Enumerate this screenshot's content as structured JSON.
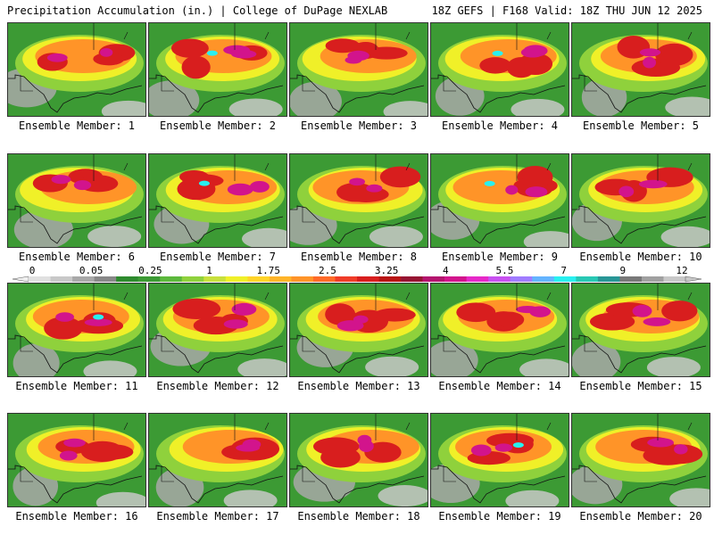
{
  "header": {
    "left": "Precipitation Accumulation (in.) | College of DuPage NEXLAB",
    "right": "18Z GEFS | F168 Valid: 18Z THU JUN 12 2025"
  },
  "panels": [
    {
      "label": "Ensemble Member: 1"
    },
    {
      "label": "Ensemble Member: 2"
    },
    {
      "label": "Ensemble Member: 3"
    },
    {
      "label": "Ensemble Member: 4"
    },
    {
      "label": "Ensemble Member: 5"
    },
    {
      "label": "Ensemble Member: 6"
    },
    {
      "label": "Ensemble Member: 7"
    },
    {
      "label": "Ensemble Member: 8"
    },
    {
      "label": "Ensemble Member: 9"
    },
    {
      "label": "Ensemble Member: 10"
    },
    {
      "label": "Ensemble Member: 11"
    },
    {
      "label": "Ensemble Member: 12"
    },
    {
      "label": "Ensemble Member: 13"
    },
    {
      "label": "Ensemble Member: 14"
    },
    {
      "label": "Ensemble Member: 15"
    },
    {
      "label": "Ensemble Member: 16"
    },
    {
      "label": "Ensemble Member: 17"
    },
    {
      "label": "Ensemble Member: 18"
    },
    {
      "label": "Ensemble Member: 19"
    },
    {
      "label": "Ensemble Member: 20"
    }
  ],
  "colorbar": {
    "tick_labels": [
      "0",
      "0.05",
      "0.25",
      "1",
      "1.75",
      "2.5",
      "3.25",
      "4",
      "5.5",
      "7",
      "9",
      "12"
    ],
    "colors": [
      "#e0e0e0",
      "#c8c8c8",
      "#a8a8a8",
      "#888888",
      "#2e8b2e",
      "#3c9a34",
      "#5cb83c",
      "#8fd13c",
      "#c8e03c",
      "#f0f028",
      "#ffd428",
      "#ffb428",
      "#ff9428",
      "#ff6a28",
      "#f03c28",
      "#d81e1e",
      "#b81414",
      "#961432",
      "#b4146e",
      "#d2148c",
      "#e628c8",
      "#c850f0",
      "#a07cff",
      "#64b4ff",
      "#28f0f0",
      "#28c8b4",
      "#289696",
      "#787878",
      "#a0a0a0",
      "#c8c8c8"
    ]
  }
}
